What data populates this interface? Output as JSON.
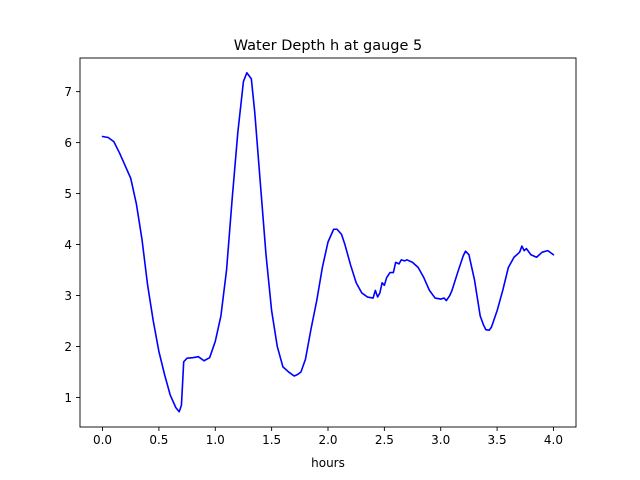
{
  "chart_data": {
    "type": "line",
    "title": "Water Depth h at gauge 5",
    "xlabel": "hours",
    "ylabel": "",
    "xlim": [
      -0.2,
      4.2
    ],
    "ylim": [
      0.42,
      7.66
    ],
    "xticks": [
      0.0,
      0.5,
      1.0,
      1.5,
      2.0,
      2.5,
      3.0,
      3.5,
      4.0
    ],
    "xtick_labels": [
      "0.0",
      "0.5",
      "1.0",
      "1.5",
      "2.0",
      "2.5",
      "3.0",
      "3.5",
      "4.0"
    ],
    "yticks": [
      1,
      2,
      3,
      4,
      5,
      6,
      7
    ],
    "ytick_labels": [
      "1",
      "2",
      "3",
      "4",
      "5",
      "6",
      "7"
    ],
    "grid": false,
    "series": [
      {
        "color": "#0000ff",
        "x": [
          0.0,
          0.05,
          0.1,
          0.15,
          0.2,
          0.25,
          0.3,
          0.35,
          0.4,
          0.45,
          0.5,
          0.55,
          0.6,
          0.65,
          0.68,
          0.7,
          0.72,
          0.75,
          0.8,
          0.85,
          0.9,
          0.95,
          1.0,
          1.05,
          1.1,
          1.15,
          1.2,
          1.25,
          1.28,
          1.32,
          1.35,
          1.4,
          1.45,
          1.5,
          1.55,
          1.6,
          1.65,
          1.7,
          1.73,
          1.76,
          1.8,
          1.85,
          1.9,
          1.95,
          2.0,
          2.05,
          2.08,
          2.12,
          2.15,
          2.2,
          2.25,
          2.3,
          2.35,
          2.4,
          2.42,
          2.44,
          2.46,
          2.48,
          2.5,
          2.52,
          2.55,
          2.58,
          2.6,
          2.63,
          2.65,
          2.68,
          2.7,
          2.75,
          2.8,
          2.85,
          2.9,
          2.95,
          3.0,
          3.03,
          3.05,
          3.08,
          3.1,
          3.15,
          3.2,
          3.22,
          3.25,
          3.3,
          3.35,
          3.38,
          3.4,
          3.43,
          3.45,
          3.5,
          3.55,
          3.6,
          3.65,
          3.7,
          3.72,
          3.74,
          3.76,
          3.8,
          3.85,
          3.9,
          3.95,
          4.0
        ],
        "y": [
          6.12,
          6.1,
          6.02,
          5.8,
          5.55,
          5.3,
          4.8,
          4.1,
          3.2,
          2.5,
          1.9,
          1.45,
          1.05,
          0.8,
          0.72,
          0.85,
          1.7,
          1.77,
          1.78,
          1.8,
          1.72,
          1.78,
          2.1,
          2.6,
          3.5,
          4.9,
          6.2,
          7.2,
          7.37,
          7.25,
          6.6,
          5.2,
          3.8,
          2.7,
          2.0,
          1.6,
          1.5,
          1.42,
          1.45,
          1.5,
          1.75,
          2.35,
          2.9,
          3.55,
          4.05,
          4.3,
          4.3,
          4.2,
          4.0,
          3.6,
          3.25,
          3.05,
          2.97,
          2.95,
          3.1,
          2.97,
          3.05,
          3.25,
          3.2,
          3.35,
          3.45,
          3.45,
          3.65,
          3.62,
          3.7,
          3.68,
          3.7,
          3.65,
          3.55,
          3.35,
          3.1,
          2.95,
          2.93,
          2.95,
          2.9,
          3.0,
          3.1,
          3.45,
          3.78,
          3.87,
          3.8,
          3.3,
          2.6,
          2.42,
          2.33,
          2.32,
          2.38,
          2.7,
          3.1,
          3.55,
          3.75,
          3.85,
          3.97,
          3.88,
          3.92,
          3.8,
          3.75,
          3.85,
          3.88,
          3.8
        ]
      }
    ]
  }
}
